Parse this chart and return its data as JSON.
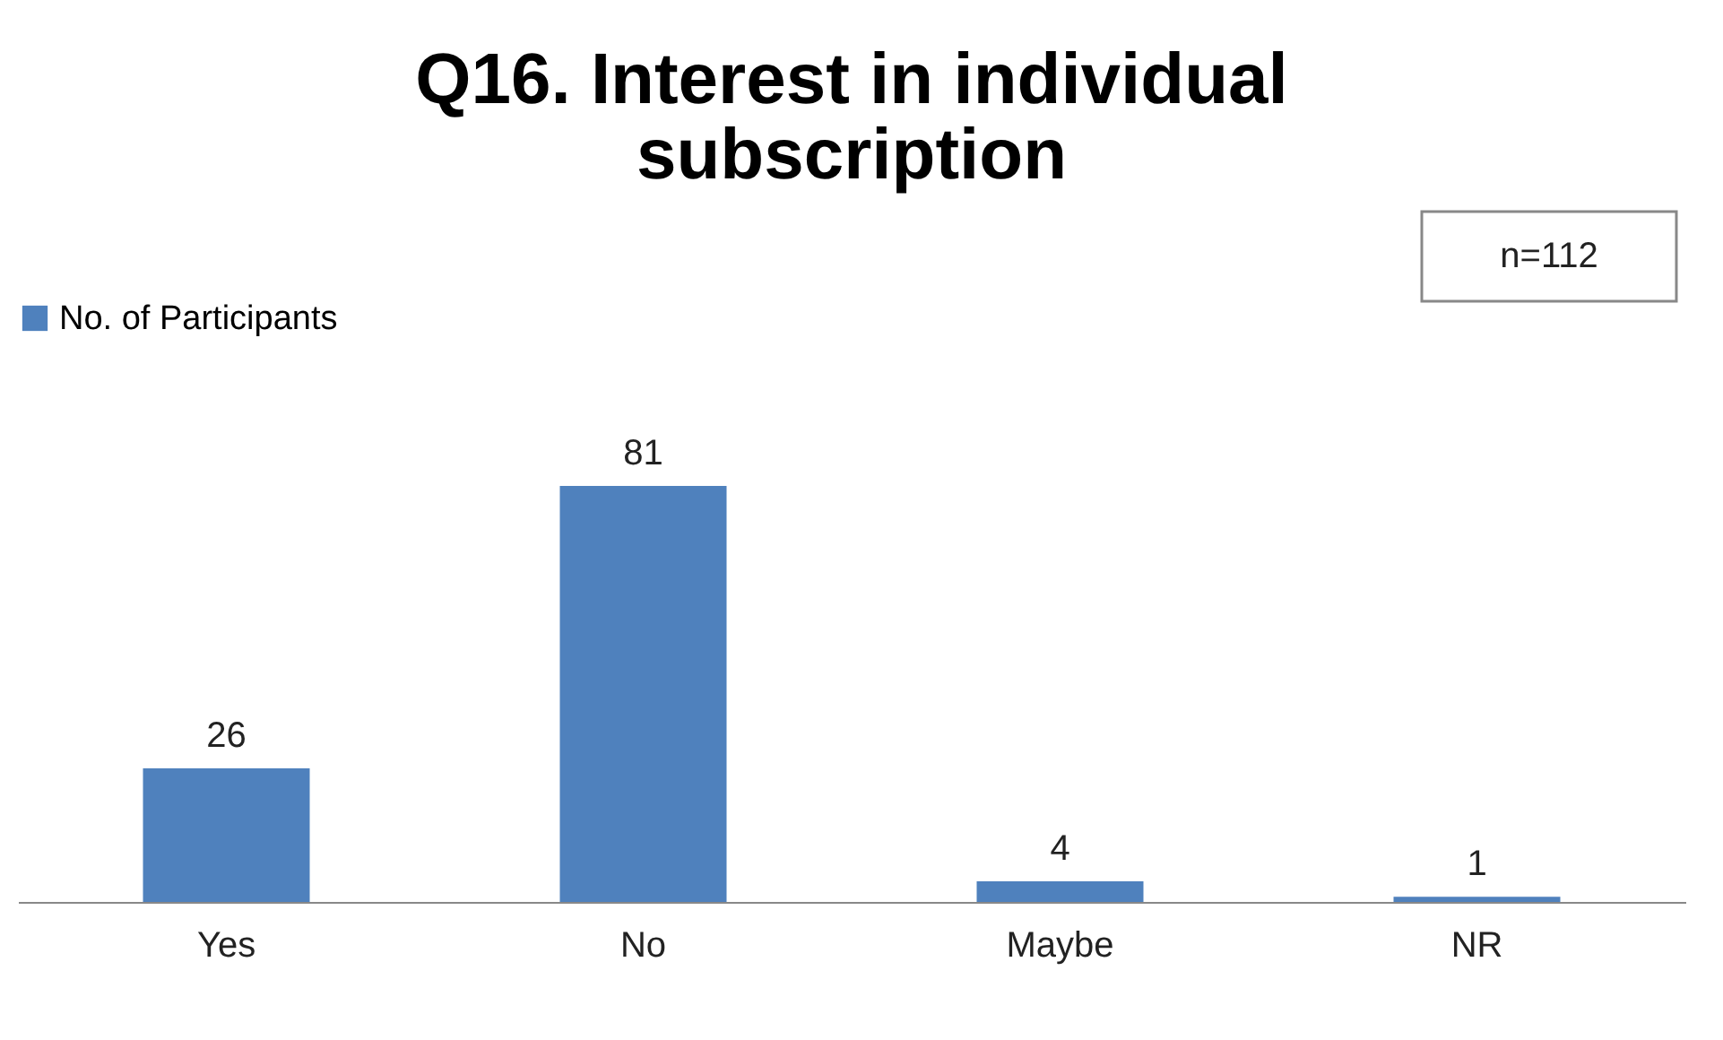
{
  "chart_data": {
    "type": "bar",
    "title": "Q16. Interest in individual subscription",
    "categories": [
      "Yes",
      "No",
      "Maybe",
      "NR"
    ],
    "series": [
      {
        "name": "No. of Participants",
        "color": "#4f81bd",
        "values": [
          26,
          81,
          4,
          1
        ]
      }
    ],
    "data_labels": true,
    "legend": "top",
    "grid": false,
    "annotations": [
      "n=112"
    ]
  }
}
